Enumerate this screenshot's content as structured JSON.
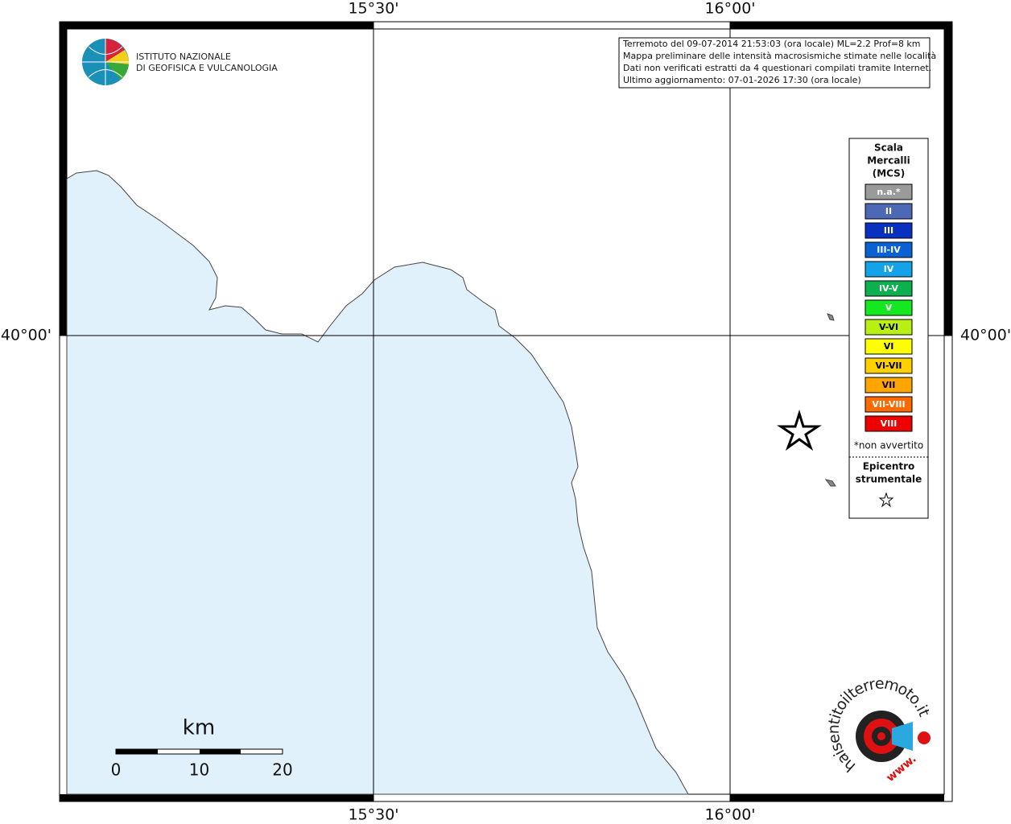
{
  "map": {
    "ticks": {
      "top": [
        "15°30'",
        "16°00'"
      ],
      "bottom": [
        "15°30'",
        "16°00'"
      ],
      "left": "40°00'",
      "right": "40°00'"
    },
    "logo": {
      "line1": "ISTITUTO NAZIONALE",
      "line2": "DI GEOFISICA E VULCANOLOGIA"
    },
    "info": [
      "Terremoto del 09-07-2014 21:53:03 (ora locale) ML=2.2 Prof=8 km",
      "Mappa preliminare delle intensità macrosismiche stimate nelle località",
      "Dati non verificati estratti da 4 questionari compilati tramite Internet.",
      "Ultimo aggiornamento: 07-01-2026 17:30 (ora locale)"
    ],
    "legend": {
      "title": [
        "Scala",
        "Mercalli",
        "(MCS)"
      ],
      "items": [
        {
          "label": "n.a.*",
          "color": "#9a9a9a"
        },
        {
          "label": "II",
          "color": "#4d68b4"
        },
        {
          "label": "III",
          "color": "#0a30c0"
        },
        {
          "label": "III-IV",
          "color": "#0a62d2"
        },
        {
          "label": "IV",
          "color": "#14a2e8"
        },
        {
          "label": "IV-V",
          "color": "#0cb04e"
        },
        {
          "label": "V",
          "color": "#14e820"
        },
        {
          "label": "V-VI",
          "color": "#b8f014"
        },
        {
          "label": "VI",
          "color": "#ffff00"
        },
        {
          "label": "VI-VII",
          "color": "#ffd000"
        },
        {
          "label": "VII",
          "color": "#ffa500"
        },
        {
          "label": "VII-VIII",
          "color": "#ff6a00"
        },
        {
          "label": "VIII",
          "color": "#ee0000"
        }
      ],
      "note": "*non avvertito",
      "epicenter": [
        "Epicentro",
        "strumentale"
      ]
    },
    "scale": {
      "unit": "km",
      "labels": [
        "0",
        "10",
        "20"
      ]
    },
    "badge": {
      "site": "haisentitoilterremoto.it",
      "www": "www."
    }
  }
}
